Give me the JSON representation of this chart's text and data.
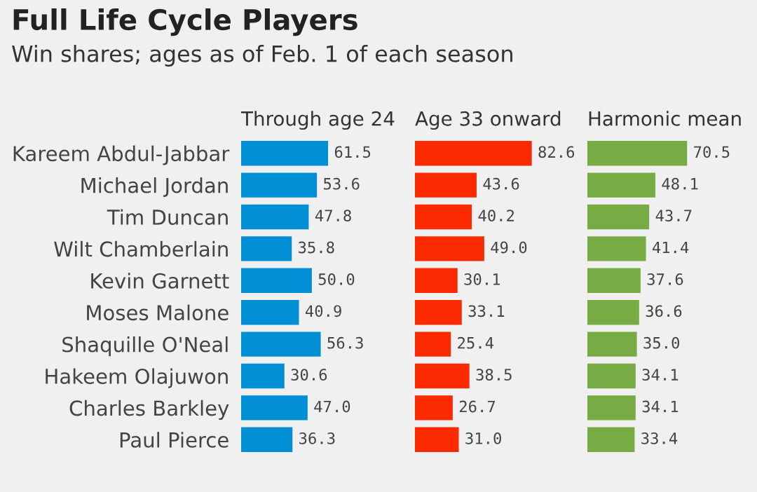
{
  "chart_data": [
    {
      "type": "other",
      "title": "Full Life Cycle Players",
      "subtitle": "Win shares; ages as of Feb. 1 of each season"
    },
    {
      "type": "bar",
      "orientation": "horizontal",
      "title": "Through age 24",
      "tick_labels": "y",
      "grid": false,
      "legend": false,
      "categories": [
        "Kareem Abdul-Jabbar",
        "Michael Jordan",
        "Tim Duncan",
        "Wilt Chamberlain",
        "Kevin Garnett",
        "Moses Malone",
        "Shaquille O'Neal",
        "Hakeem Olajuwon",
        "Charles Barkley",
        "Paul Pierce"
      ],
      "series": [
        {
          "color": "#008fd5",
          "values": [
            61.5,
            53.6,
            47.8,
            35.8,
            50,
            40.9,
            56.3,
            30.6,
            47,
            36.3
          ],
          "value_labels": [
            "61.5",
            "53.6",
            "47.8",
            "35.8",
            "50.0",
            "40.9",
            "56.3",
            "30.6",
            "47.0",
            "36.3"
          ]
        }
      ]
    },
    {
      "type": "bar",
      "orientation": "horizontal",
      "title": "Age 33 onward",
      "tick_labels": false,
      "grid": false,
      "legend": false,
      "categories": [
        null,
        null,
        null,
        null,
        null,
        null,
        null,
        null,
        null,
        null
      ],
      "series": [
        {
          "color": "#fc2a00",
          "values": [
            82.6,
            43.6,
            40.2,
            49,
            30.1,
            33.1,
            25.4,
            38.5,
            26.7,
            31
          ],
          "value_labels": [
            "82.6",
            "43.6",
            "40.2",
            "49.0",
            "30.1",
            "33.1",
            "25.4",
            "38.5",
            "26.7",
            "31.0"
          ]
        }
      ]
    },
    {
      "type": "bar",
      "orientation": "horizontal",
      "title": "Harmonic mean",
      "tick_labels": false,
      "grid": false,
      "legend": false,
      "categories": [
        null,
        null,
        null,
        null,
        null,
        null,
        null,
        null,
        null,
        null
      ],
      "series": [
        {
          "color": "#77ab43",
          "values": [
            70.5,
            48.1,
            43.7,
            41.4,
            37.6,
            36.6,
            35,
            34.1,
            34.1,
            33.4
          ],
          "value_labels": [
            "70.5",
            "48.1",
            "43.7",
            "41.4",
            "37.6",
            "36.6",
            "35.0",
            "34.1",
            "34.1",
            "33.4"
          ]
        }
      ]
    }
  ]
}
